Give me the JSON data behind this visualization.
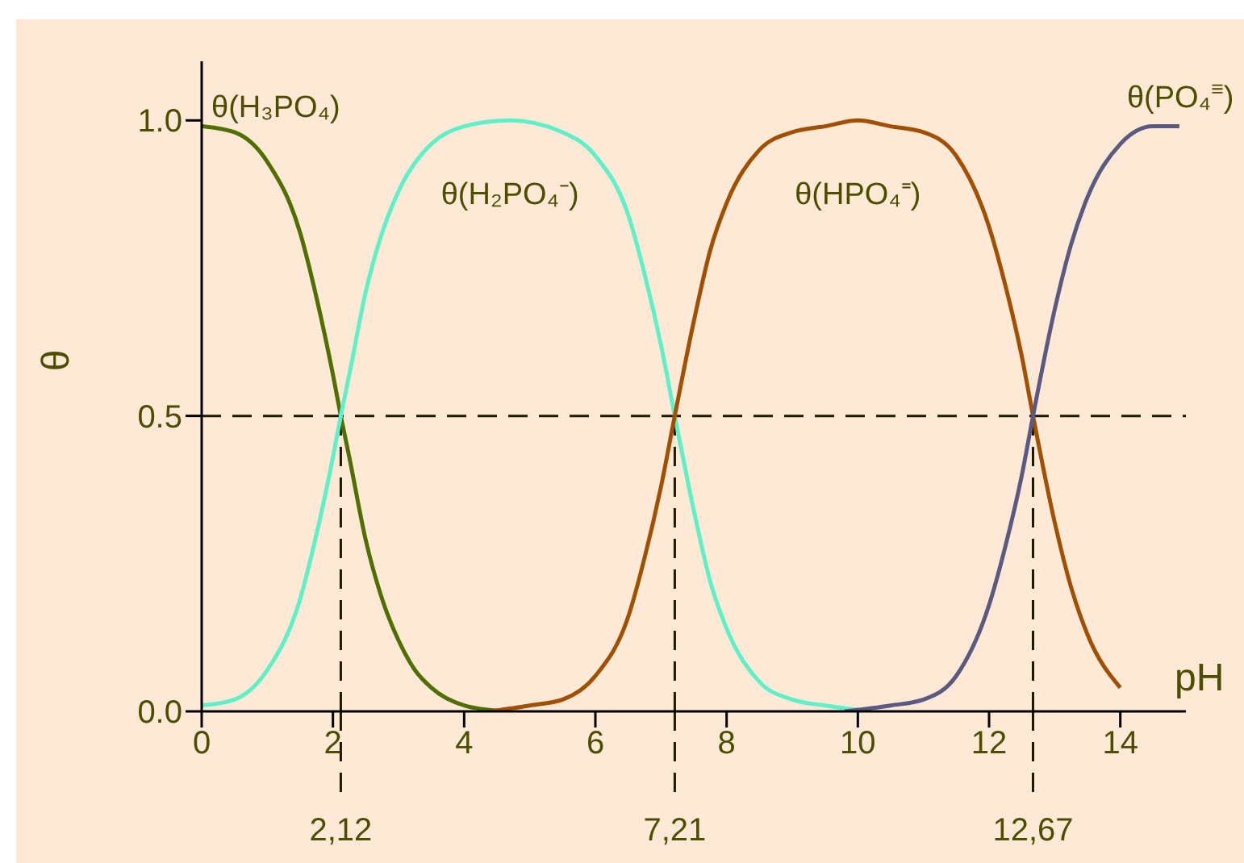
{
  "chart_data": {
    "type": "line",
    "xlabel": "pH",
    "ylabel": "θ",
    "xlim": [
      0,
      15
    ],
    "xticks": [
      0,
      2,
      4,
      6,
      8,
      10,
      12,
      14
    ],
    "ylim": [
      0,
      1.1
    ],
    "yticks": [
      {
        "value": 0,
        "label": "0.0"
      },
      0.5,
      {
        "value": 1,
        "label": "1.0"
      }
    ],
    "marker": "none",
    "ref_lines": [
      {
        "axis": "y",
        "value": 0.5,
        "color": "#1a1a00",
        "line_style": "dashed"
      },
      {
        "axis": "x",
        "value": 2.12,
        "label": "2,12",
        "color": "#1a1a00",
        "line_style": "dashed"
      },
      {
        "axis": "x",
        "value": 7.21,
        "label": "7,21",
        "color": "#1a1a00",
        "line_style": "dashed"
      },
      {
        "axis": "x",
        "value": 12.67,
        "label": "12,67",
        "color": "#1a1a00",
        "line_style": "dashed"
      }
    ],
    "series": [
      {
        "name": "θ(H₃PO₄)",
        "color": "#4f7000",
        "x": [
          0,
          0.5,
          1,
          1.5,
          1.75,
          2,
          2.12,
          2.25,
          2.5,
          2.75,
          3,
          3.25,
          3.5,
          4,
          4.6
        ],
        "values": [
          0.99,
          0.98,
          0.93,
          0.81,
          0.7,
          0.57,
          0.5,
          0.43,
          0.29,
          0.19,
          0.12,
          0.07,
          0.04,
          0.01,
          0.0
        ]
      },
      {
        "name": "θ(H₂PO₄⁻)",
        "color": "#5ef0c8",
        "x": [
          0,
          0.5,
          1,
          1.5,
          1.75,
          2,
          2.12,
          2.25,
          2.5,
          2.75,
          3,
          3.5,
          4,
          4.7,
          5.5,
          6,
          6.5,
          6.75,
          7,
          7.21,
          7.5,
          7.75,
          8,
          8.5,
          9,
          9.5,
          10.2
        ],
        "values": [
          0.01,
          0.02,
          0.07,
          0.19,
          0.3,
          0.43,
          0.5,
          0.57,
          0.71,
          0.81,
          0.88,
          0.96,
          0.99,
          1.0,
          0.98,
          0.94,
          0.84,
          0.74,
          0.62,
          0.5,
          0.34,
          0.22,
          0.14,
          0.05,
          0.02,
          0.01,
          0.0
        ]
      },
      {
        "name": "θ(HPO₄⁼)",
        "color": "#a05000",
        "x": [
          4.4,
          5,
          5.5,
          6,
          6.5,
          6.75,
          7,
          7.21,
          7.5,
          7.75,
          8,
          8.5,
          9,
          9.5,
          10,
          10.5,
          11,
          11.5,
          12,
          12.25,
          12.5,
          12.67,
          13,
          13.25,
          13.5,
          14
        ],
        "values": [
          0.0,
          0.01,
          0.02,
          0.06,
          0.16,
          0.26,
          0.38,
          0.5,
          0.66,
          0.78,
          0.86,
          0.95,
          0.98,
          0.99,
          1.0,
          0.99,
          0.98,
          0.94,
          0.82,
          0.72,
          0.6,
          0.5,
          0.32,
          0.21,
          0.13,
          0.04
        ]
      },
      {
        "name": "θ(PO₄$^{≡}$)",
        "color": "#5a5a80",
        "x": [
          9.8,
          10.5,
          11,
          11.5,
          12,
          12.25,
          12.5,
          12.67,
          13,
          13.25,
          13.5,
          14,
          14.5,
          14.9
        ],
        "values": [
          0.0,
          0.01,
          0.02,
          0.06,
          0.18,
          0.28,
          0.4,
          0.5,
          0.68,
          0.79,
          0.87,
          0.96,
          0.99,
          0.99
        ]
      }
    ]
  }
}
